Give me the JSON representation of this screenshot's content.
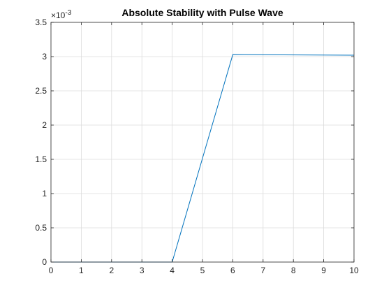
{
  "chart_data": {
    "type": "line",
    "title": "Absolute Stability with Pulse Wave",
    "xlabel": "",
    "ylabel": "",
    "xlim": [
      0,
      10
    ],
    "ylim": [
      0,
      0.0035
    ],
    "y_exponent_label": "×10",
    "y_exponent_power": "-3",
    "xticks": [
      "0",
      "1",
      "2",
      "3",
      "4",
      "5",
      "6",
      "7",
      "8",
      "9",
      "10"
    ],
    "xtick_values": [
      0,
      1,
      2,
      3,
      4,
      5,
      6,
      7,
      8,
      9,
      10
    ],
    "yticks": [
      "0",
      "0.5",
      "1",
      "1.5",
      "2",
      "2.5",
      "3",
      "3.5"
    ],
    "ytick_values": [
      0,
      0.0005,
      0.001,
      0.0015,
      0.002,
      0.0025,
      0.003,
      0.0035
    ],
    "grid": true,
    "series": [
      {
        "color": "#0072BD",
        "x": [
          0,
          4,
          6,
          10
        ],
        "y": [
          0,
          0,
          0.00303,
          0.00302
        ]
      }
    ]
  }
}
